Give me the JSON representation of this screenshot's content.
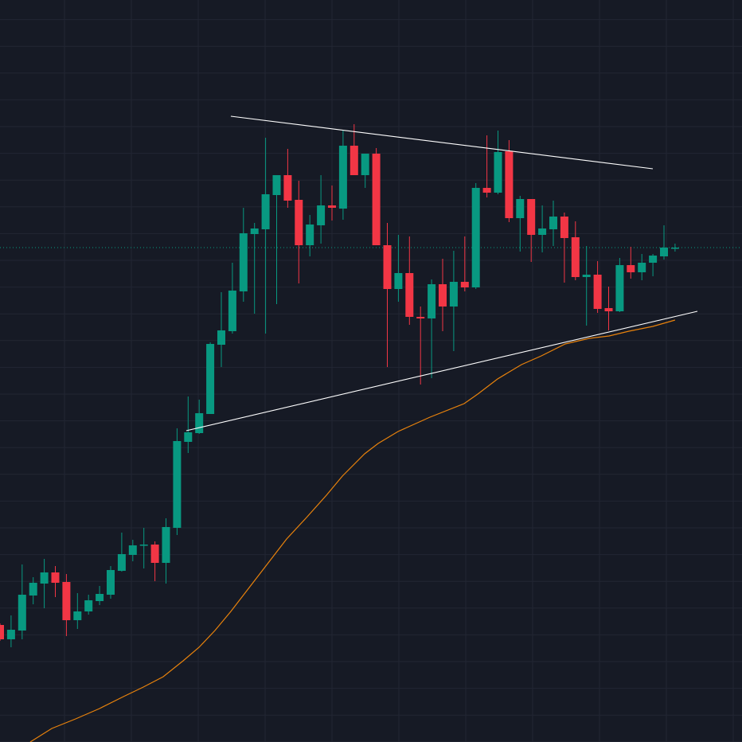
{
  "chart_data": {
    "type": "candlestick",
    "title": "",
    "xlabel": "",
    "ylabel": "",
    "ylim": [
      0,
      93.2
    ],
    "grid": true,
    "colors": {
      "background": "#161a25",
      "grid": "#222633",
      "up": "#089981",
      "down": "#f23645",
      "moving_average": "#e8820c",
      "trendline": "#ffffff",
      "last_price_line": "#089981"
    },
    "candles_ohlc": [
      [
        14.7,
        14.9,
        12.7,
        12.9
      ],
      [
        12.9,
        15.9,
        11.9,
        14.1
      ],
      [
        14.0,
        22.3,
        12.9,
        18.5
      ],
      [
        18.4,
        20.7,
        17.3,
        20.0
      ],
      [
        19.9,
        23.0,
        16.8,
        21.3
      ],
      [
        21.3,
        22.1,
        18.2,
        20.0
      ],
      [
        20.1,
        21.1,
        13.3,
        15.3
      ],
      [
        15.3,
        18.7,
        14.2,
        16.4
      ],
      [
        16.4,
        18.5,
        16.0,
        17.8
      ],
      [
        17.7,
        19.6,
        17.2,
        18.6
      ],
      [
        18.5,
        22.1,
        18.0,
        21.6
      ],
      [
        21.5,
        26.3,
        21.4,
        23.6
      ],
      [
        23.5,
        25.4,
        22.7,
        24.7
      ],
      [
        24.7,
        26.9,
        21.8,
        24.8
      ],
      [
        24.8,
        25.2,
        20.2,
        22.5
      ],
      [
        22.5,
        28.1,
        19.9,
        27.0
      ],
      [
        26.9,
        39.4,
        26.0,
        37.8
      ],
      [
        37.7,
        43.4,
        36.3,
        38.9
      ],
      [
        38.8,
        43.0,
        38.7,
        41.3
      ],
      [
        41.2,
        50.2,
        41.2,
        50.0
      ],
      [
        49.9,
        56.5,
        47.1,
        51.7
      ],
      [
        51.6,
        60.2,
        51.3,
        56.7
      ],
      [
        56.6,
        67.1,
        55.3,
        63.9
      ],
      [
        63.8,
        65.2,
        53.8,
        64.5
      ],
      [
        64.4,
        75.9,
        51.3,
        68.8
      ],
      [
        68.7,
        71.2,
        55.0,
        71.2
      ],
      [
        71.2,
        74.5,
        67.1,
        68.0
      ],
      [
        68.1,
        70.5,
        57.6,
        62.4
      ],
      [
        62.4,
        66.2,
        61.0,
        65.0
      ],
      [
        64.9,
        71.2,
        62.6,
        67.4
      ],
      [
        67.4,
        69.9,
        65.5,
        67.1
      ],
      [
        67.0,
        76.8,
        65.6,
        74.9
      ],
      [
        74.9,
        77.6,
        71.2,
        71.2
      ],
      [
        71.2,
        73.9,
        69.6,
        73.9
      ],
      [
        73.9,
        74.6,
        62.4,
        62.4
      ],
      [
        62.4,
        65.2,
        47.1,
        56.9
      ],
      [
        56.9,
        63.7,
        55.3,
        58.9
      ],
      [
        58.9,
        63.5,
        52.4,
        53.4
      ],
      [
        53.4,
        54.7,
        44.9,
        53.2
      ],
      [
        53.2,
        58.1,
        45.7,
        57.5
      ],
      [
        57.5,
        60.7,
        51.6,
        54.7
      ],
      [
        54.7,
        61.7,
        49.1,
        57.8
      ],
      [
        57.8,
        63.5,
        56.6,
        57.1
      ],
      [
        57.1,
        70.2,
        56.9,
        69.6
      ],
      [
        69.6,
        76.2,
        68.4,
        69.0
      ],
      [
        69.0,
        76.8,
        68.8,
        74.1
      ],
      [
        74.2,
        75.6,
        65.3,
        65.8
      ],
      [
        65.8,
        68.6,
        61.6,
        68.2
      ],
      [
        68.2,
        68.2,
        60.3,
        63.7
      ],
      [
        63.7,
        67.4,
        61.5,
        64.5
      ],
      [
        64.4,
        68.0,
        62.3,
        66.0
      ],
      [
        66.0,
        66.5,
        57.7,
        63.3
      ],
      [
        63.4,
        65.4,
        58.0,
        58.4
      ],
      [
        58.4,
        62.3,
        52.3,
        58.7
      ],
      [
        58.7,
        60.4,
        53.9,
        54.4
      ],
      [
        54.5,
        57.2,
        51.7,
        54.1
      ],
      [
        54.1,
        60.8,
        54.0,
        59.9
      ],
      [
        59.9,
        62.2,
        58.2,
        59.0
      ],
      [
        59.0,
        61.3,
        58.0,
        60.2
      ],
      [
        60.2,
        61.3,
        58.5,
        61.1
      ],
      [
        61.0,
        64.9,
        60.6,
        62.1
      ],
      [
        62.1,
        62.6,
        61.6,
        62.1
      ]
    ],
    "last_price": 62.1,
    "moving_average": [
      [
        2.73,
        0.0
      ],
      [
        4.68,
        1.7
      ],
      [
        6.83,
        2.9
      ],
      [
        8.99,
        4.2
      ],
      [
        11.15,
        5.7
      ],
      [
        12.95,
        6.9
      ],
      [
        14.75,
        8.2
      ],
      [
        16.55,
        10.2
      ],
      [
        17.99,
        11.9
      ],
      [
        19.42,
        14.0
      ],
      [
        20.86,
        16.4
      ],
      [
        22.3,
        19.0
      ],
      [
        23.74,
        21.6
      ],
      [
        25.18,
        24.2
      ],
      [
        25.9,
        25.5
      ],
      [
        27.7,
        28.2
      ],
      [
        29.5,
        31.0
      ],
      [
        30.94,
        33.4
      ],
      [
        32.95,
        36.2
      ],
      [
        34.17,
        37.5
      ],
      [
        35.97,
        39.0
      ],
      [
        38.85,
        40.8
      ],
      [
        41.94,
        42.5
      ],
      [
        43.17,
        43.7
      ],
      [
        44.96,
        45.6
      ],
      [
        47.12,
        47.4
      ],
      [
        48.92,
        48.5
      ],
      [
        51.08,
        50.0
      ],
      [
        53.24,
        50.7
      ],
      [
        55.04,
        51.0
      ],
      [
        56.83,
        51.6
      ],
      [
        58.99,
        52.2
      ],
      [
        61.0,
        53.0
      ]
    ],
    "trendlines": [
      {
        "from": [
          20.86,
          78.6
        ],
        "to": [
          58.99,
          72.0
        ]
      },
      {
        "from": [
          16.83,
          39.1
        ],
        "to": [
          63.02,
          54.1
        ]
      }
    ]
  }
}
